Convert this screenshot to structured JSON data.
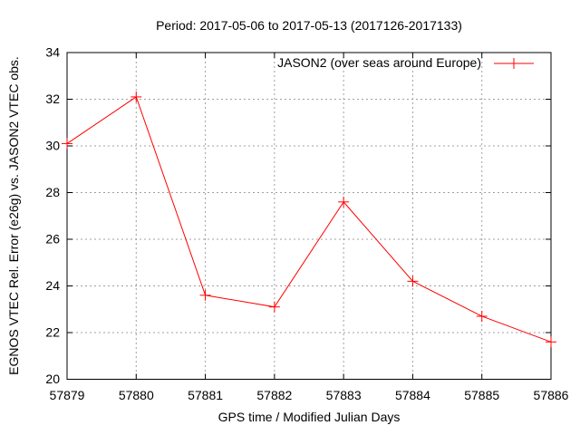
{
  "chart_data": {
    "type": "line",
    "title": "Period: 2017-05-06 to 2017-05-13 (2017126-2017133)",
    "xlabel": "GPS time / Modified Julian Days",
    "ylabel": "EGNOS VTEC Rel. Error (e26g) vs. JASON2 VTEC obs.",
    "x": [
      57879,
      57880,
      57881,
      57882,
      57883,
      57884,
      57885,
      57886
    ],
    "series": [
      {
        "name": "JASON2 (over seas around Europe)",
        "values": [
          30.1,
          32.1,
          23.6,
          23.1,
          27.6,
          24.2,
          22.7,
          21.6
        ],
        "color": "#ff0000",
        "marker": "plus"
      }
    ],
    "xlim": [
      57879,
      57886
    ],
    "ylim": [
      20,
      34
    ],
    "xticks": [
      57879,
      57880,
      57881,
      57882,
      57883,
      57884,
      57885,
      57886
    ],
    "yticks": [
      20,
      22,
      24,
      26,
      28,
      30,
      32,
      34
    ],
    "grid": true,
    "grid_style": "dotted",
    "legend_position": "top-right-inside",
    "colors": {
      "series": "#ff0000",
      "grid": "#a0a0a0",
      "border": "#000000",
      "text": "#000000",
      "background": "#ffffff"
    }
  }
}
